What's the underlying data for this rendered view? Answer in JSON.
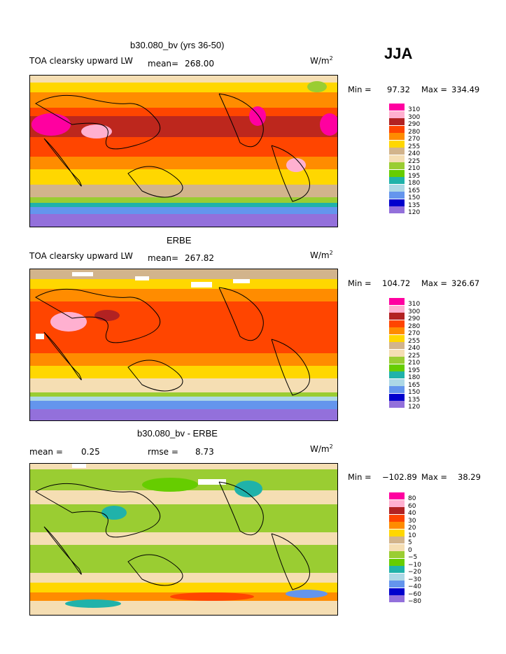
{
  "season": "JJA",
  "panels": [
    {
      "title": "b30.080_bv (yrs 36-50)",
      "variable": "TOA clearsky upward LW",
      "mean_label": "mean=",
      "mean": "268.00",
      "units": "W/m",
      "units_sup": "2",
      "min_label": "Min =",
      "min": "97.32",
      "max_label": "Max =",
      "max": "334.49"
    },
    {
      "title": "ERBE",
      "variable": "TOA clearsky upward LW",
      "mean_label": "mean=",
      "mean": "267.82",
      "units": "W/m",
      "units_sup": "2",
      "min_label": "Min =",
      "min": "104.72",
      "max_label": "Max =",
      "max": "326.67"
    },
    {
      "title": "b30.080_bv - ERBE",
      "mean_label": "mean =",
      "mean": "0.25",
      "rmse_label": "rmse =",
      "rmse": "8.73",
      "units": "W/m",
      "units_sup": "2",
      "min_label": "Min =",
      "min": "−102.89",
      "max_label": "Max =",
      "max": "38.29"
    }
  ],
  "chart_data": [
    {
      "type": "heatmap",
      "title": "b30.080_bv (yrs 36-50)",
      "levels": [
        "310",
        "300",
        "290",
        "280",
        "270",
        "255",
        "240",
        "225",
        "210",
        "195",
        "180",
        "165",
        "150",
        "135",
        "120"
      ],
      "colors": [
        "#ff00a0",
        "#ffb0d0",
        "#b22222",
        "#ff4500",
        "#ff8c00",
        "#ffd700",
        "#d2b48c",
        "#f5deb3",
        "#9acd32",
        "#66cd00",
        "#20b2aa",
        "#add8e6",
        "#6495ed",
        "#0000cd",
        "#9370db"
      ]
    },
    {
      "type": "heatmap",
      "title": "ERBE",
      "levels": [
        "310",
        "300",
        "290",
        "280",
        "270",
        "255",
        "240",
        "225",
        "210",
        "195",
        "180",
        "165",
        "150",
        "135",
        "120"
      ],
      "colors": [
        "#ff00a0",
        "#ffb0d0",
        "#b22222",
        "#ff4500",
        "#ff8c00",
        "#ffd700",
        "#d2b48c",
        "#f5deb3",
        "#9acd32",
        "#66cd00",
        "#20b2aa",
        "#add8e6",
        "#6495ed",
        "#0000cd",
        "#9370db"
      ]
    },
    {
      "type": "heatmap",
      "title": "b30.080_bv - ERBE",
      "levels": [
        "80",
        "60",
        "40",
        "30",
        "20",
        "10",
        "5",
        "0",
        "−5",
        "−10",
        "−20",
        "−30",
        "−40",
        "−60",
        "−80"
      ],
      "colors": [
        "#ff00a0",
        "#ffb0d0",
        "#b22222",
        "#ff4500",
        "#ff8c00",
        "#ffd700",
        "#d2b48c",
        "#f5deb3",
        "#9acd32",
        "#66cd00",
        "#20b2aa",
        "#add8e6",
        "#6495ed",
        "#0000cd",
        "#9370db"
      ]
    }
  ]
}
